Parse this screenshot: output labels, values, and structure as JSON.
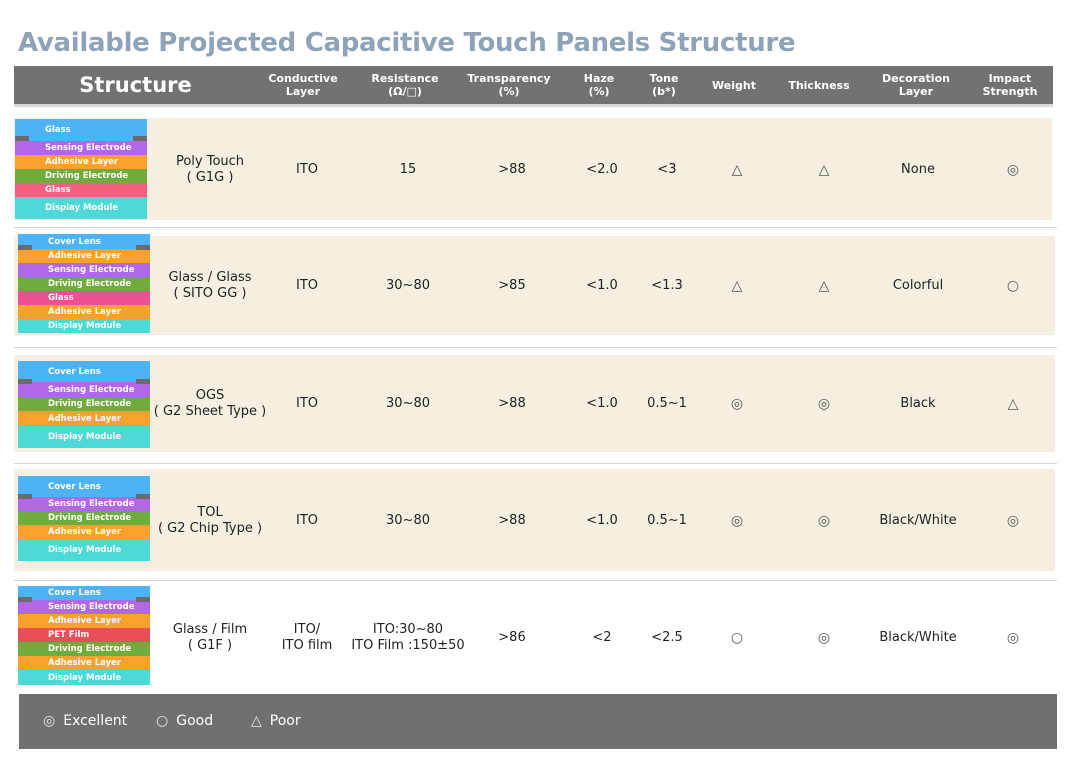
{
  "title": "Available Projected Capacitive Touch Panels Structure",
  "headers": {
    "structure": "Structure",
    "conductive": "Conductive\nLayer",
    "resistance": "Resistance\n(Ω/□)",
    "transparency": "Transparency\n(%)",
    "haze": "Haze\n(%)",
    "tone": "Tone\n(b*)",
    "weight": "Weight",
    "thickness": "Thickness",
    "decoration": "Decoration\nLayer",
    "impact": "Impact\nStrength"
  },
  "colors": {
    "lens": "#4db3f5",
    "sensing": "#b267e6",
    "adhesive": "#f8a12c",
    "driving": "#6fac3b",
    "glass_pink": "#f3607f",
    "glass_magenta": "#f0508f",
    "display": "#4dd9d6",
    "pet": "#ea4e57",
    "row_bg": "#f5efe2"
  },
  "rows": [
    {
      "name": "Poly Touch\n( G1G )",
      "layers": [
        "Glass",
        "Sensing Electrode",
        "Adhesive Layer",
        "Driving Electrode",
        "Glass",
        "Display Module"
      ],
      "conductive": "ITO",
      "resistance": "15",
      "transparency": ">88",
      "haze": "<2.0",
      "tone": "<3",
      "weight": "△",
      "thickness": "△",
      "decoration": "None",
      "impact": "◎"
    },
    {
      "name": "Glass  / Glass\n( SITO GG )",
      "layers": [
        "Cover Lens",
        "Adhesive Layer",
        "Sensing Electrode",
        "Driving Electrode",
        "Glass",
        "Adhesive Layer",
        "Display Module"
      ],
      "conductive": "ITO",
      "resistance": "30~80",
      "transparency": ">85",
      "haze": "<1.0",
      "tone": "<1.3",
      "weight": "△",
      "thickness": "△",
      "decoration": "Colorful",
      "impact": "○"
    },
    {
      "name": "OGS\n( G2 Sheet Type )",
      "layers": [
        "Cover Lens",
        "Sensing Electrode",
        "Driving Electrode",
        "Adhesive Layer",
        "Display Module"
      ],
      "conductive": "ITO",
      "resistance": "30~80",
      "transparency": ">88",
      "haze": "<1.0",
      "tone": "0.5~1",
      "weight": "◎",
      "thickness": "◎",
      "decoration": "Black",
      "impact": "△"
    },
    {
      "name": "TOL\n( G2 Chip Type )",
      "layers": [
        "Cover Lens",
        "Sensing Electrode",
        "Driving Electrode",
        "Adhesive Layer",
        "Display Module"
      ],
      "conductive": "ITO",
      "resistance": "30~80",
      "transparency": ">88",
      "haze": "<1.0",
      "tone": "0.5~1",
      "weight": "◎",
      "thickness": "◎",
      "decoration": "Black/White",
      "impact": "◎"
    },
    {
      "name": "Glass / Film\n( G1F )",
      "layers": [
        "Cover Lens",
        "Sensing Electrode",
        "Adhesive Layer",
        "PET Film",
        "Driving Electrode",
        "Adhesive Layer",
        "Display Module"
      ],
      "conductive": "ITO/\nITO film",
      "resistance": "ITO:30~80\nITO Film :150±50",
      "transparency": ">86",
      "haze": "<2",
      "tone": "<2.5",
      "weight": "○",
      "thickness": "◎",
      "decoration": "Black/White",
      "impact": "◎"
    }
  ],
  "legend": [
    {
      "symbol": "◎",
      "label": "Excellent"
    },
    {
      "symbol": "○",
      "label": "Good"
    },
    {
      "symbol": "△",
      "label": "Poor"
    }
  ]
}
